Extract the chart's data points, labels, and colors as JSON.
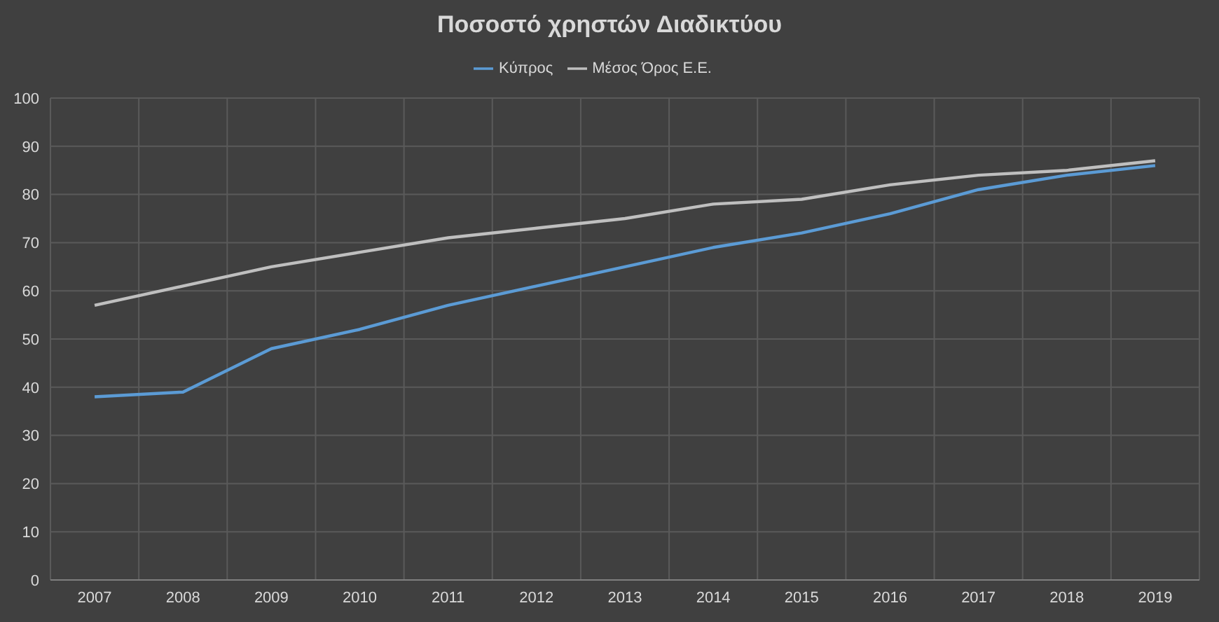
{
  "chart_data": {
    "type": "line",
    "title": "Ποσοστό χρηστών Διαδικτύου",
    "categories": [
      "2007",
      "2008",
      "2009",
      "2010",
      "2011",
      "2012",
      "2013",
      "2014",
      "2015",
      "2016",
      "2017",
      "2018",
      "2019"
    ],
    "series": [
      {
        "name": "Κύπρος",
        "color": "#5b9bd5",
        "values": [
          38,
          39,
          48,
          52,
          57,
          61,
          65,
          69,
          72,
          76,
          81,
          84,
          86
        ]
      },
      {
        "name": "Μέσος Όρος Ε.Ε.",
        "color": "#bfbfbf",
        "values": [
          57,
          61,
          65,
          68,
          71,
          73,
          75,
          78,
          79,
          82,
          84,
          85,
          87
        ]
      }
    ],
    "ylim": [
      0,
      100
    ],
    "yticks": [
      0,
      10,
      20,
      30,
      40,
      50,
      60,
      70,
      80,
      90,
      100
    ],
    "grid": true,
    "legend": "top",
    "marker": "none",
    "line_style": "solid"
  }
}
